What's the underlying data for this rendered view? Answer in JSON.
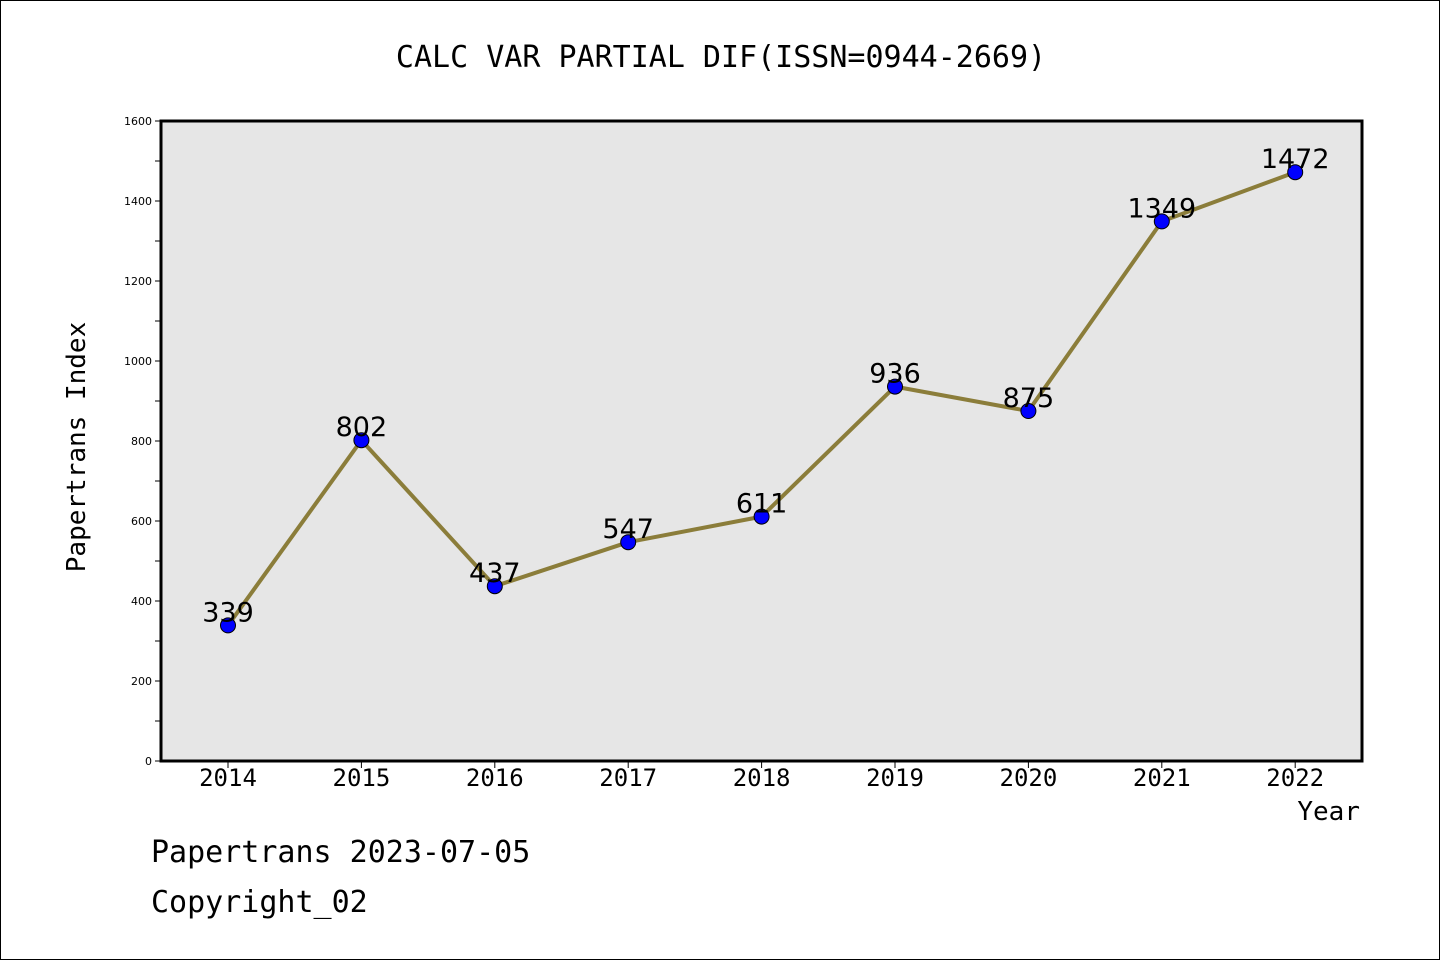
{
  "chart_data": {
    "type": "line",
    "title": "CALC VAR PARTIAL DIF(ISSN=0944-2669)",
    "xlabel": "Year",
    "ylabel": "Papertrans Index",
    "categories": [
      "2014",
      "2015",
      "2016",
      "2017",
      "2018",
      "2019",
      "2020",
      "2021",
      "2022"
    ],
    "series": [
      {
        "values": [
          339,
          802,
          437,
          547,
          611,
          936,
          875,
          1349,
          1472
        ]
      }
    ],
    "data_labels": [
      "339",
      "802",
      "437",
      "547",
      "611",
      "936",
      "875",
      "1349",
      "1472"
    ],
    "ylim": [
      0,
      1600
    ],
    "yticks": [
      "0",
      "200",
      "400",
      "600",
      "800",
      "1000",
      "1200",
      "1400",
      "1600"
    ],
    "grid": false,
    "legend": "none",
    "colors": {
      "line": "#8b7d3a",
      "marker": "#0000ff",
      "plot_background": "#e6e6e6"
    }
  },
  "footer": {
    "source": "Papertrans 2023-07-05",
    "copyright": "Copyright_02"
  }
}
